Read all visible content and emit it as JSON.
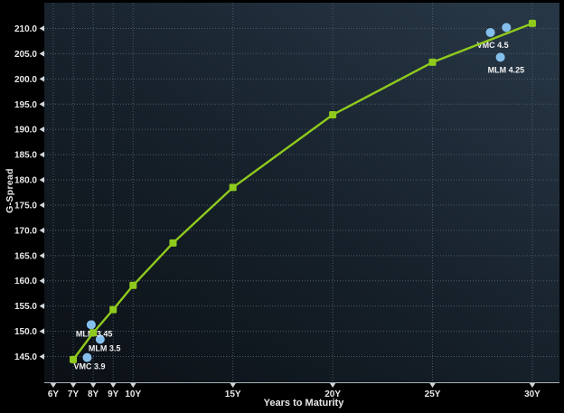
{
  "window": {
    "background": "#000000"
  },
  "chart_data": {
    "type": "line",
    "title": "",
    "xlabel": "Years to Maturity",
    "ylabel": "G-Spread",
    "xlim": [
      5.55,
      31.36
    ],
    "ylim": [
      139.9,
      215.1
    ],
    "grid": true,
    "legend": false,
    "x_ticks": [
      {
        "v": 6,
        "label": "6Y"
      },
      {
        "v": 7,
        "label": "7Y"
      },
      {
        "v": 8,
        "label": "8Y"
      },
      {
        "v": 9,
        "label": "9Y"
      },
      {
        "v": 10,
        "label": "10Y"
      },
      {
        "v": 15,
        "label": "15Y"
      },
      {
        "v": 20,
        "label": "20Y"
      },
      {
        "v": 25,
        "label": "25Y"
      },
      {
        "v": 30,
        "label": "30Y"
      }
    ],
    "y_ticks": [
      {
        "v": 145,
        "label": "145.0"
      },
      {
        "v": 150,
        "label": "150.0"
      },
      {
        "v": 155,
        "label": "155.0"
      },
      {
        "v": 160,
        "label": "160.0"
      },
      {
        "v": 165,
        "label": "165.0"
      },
      {
        "v": 170,
        "label": "170.0"
      },
      {
        "v": 175,
        "label": "175.0"
      },
      {
        "v": 180,
        "label": "180.0"
      },
      {
        "v": 185,
        "label": "185.0"
      },
      {
        "v": 190,
        "label": "190.0"
      },
      {
        "v": 195,
        "label": "195.0"
      },
      {
        "v": 200,
        "label": "200.0"
      },
      {
        "v": 205,
        "label": "205.0"
      },
      {
        "v": 210,
        "label": "210.0"
      }
    ],
    "series": [
      {
        "name": "g-spread-curve",
        "type": "line",
        "marker": "square",
        "color": "#8fca1d",
        "x": [
          7,
          8,
          9,
          10,
          12,
          15,
          20,
          25,
          30
        ],
        "y": [
          144.4,
          149.7,
          154.3,
          159.1,
          167.5,
          178.5,
          192.9,
          203.3,
          211.0
        ]
      },
      {
        "name": "bonds",
        "type": "scatter",
        "color": "#85c0ec",
        "points": [
          {
            "label": "MLM 3.45",
            "x": 7.9,
            "y": 151.3,
            "label_dx": -17,
            "label_dy": 13
          },
          {
            "label": "MLM 3.5",
            "x": 8.35,
            "y": 148.4,
            "label_dx": -13,
            "label_dy": 13
          },
          {
            "label": "VMC 3.9",
            "x": 7.7,
            "y": 144.8,
            "label_dx": -15,
            "label_dy": 13
          },
          {
            "label": "VMC 4.5",
            "x": 27.9,
            "y": 209.2,
            "label_dx": -15,
            "label_dy": 17
          },
          {
            "label": "",
            "x": 28.7,
            "y": 210.2,
            "label_dx": 0,
            "label_dy": 0
          },
          {
            "label": "MLM 4.25",
            "x": 28.4,
            "y": 204.3,
            "label_dx": -14,
            "label_dy": 17
          }
        ]
      }
    ],
    "colors": {
      "plot_bg_dark": "#0b1015",
      "plot_bg_mid": "#17222c",
      "plot_bg_light": "#273645",
      "grid": "#4c5a66",
      "axis_line": "#a9b1b7",
      "tick_mark": "#d0d6da",
      "tick_text": "#e8e8e8",
      "bond_label_text": "#f2f2f2"
    }
  }
}
